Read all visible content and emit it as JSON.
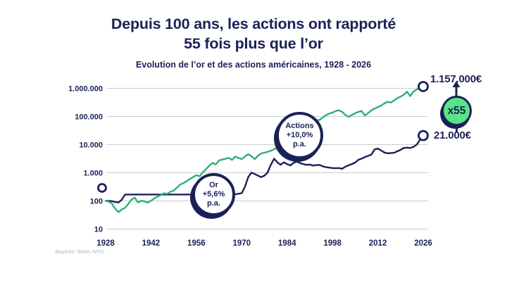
{
  "header": {
    "title_line1": "Depuis 100 ans, les actions ont rapporté",
    "title_line2": "55 fois plus que l’or",
    "subtitle": "Evolution de l’or et des actions américaines, 1928 - 2026"
  },
  "annotations": {
    "actions_badge": {
      "line1": "Actions",
      "line2": "+10,0%",
      "line3": "p.a."
    },
    "or_badge": {
      "line1": "Or",
      "line2": "+5,6%",
      "line3": "p.a."
    },
    "multiplier_badge": "x55",
    "stocks_end_label": "1.157.000€",
    "gold_end_label": "21.000€"
  },
  "footer": {
    "sources": "Sources: Stern, NYU"
  },
  "colors": {
    "navy": "#1b2157",
    "green_line": "#2faf7b",
    "badge_green": "#58e588",
    "gridline": "#cbcbcf",
    "source_text": "#a6aac6",
    "background": "#ffffff"
  },
  "chart_data": {
    "type": "line",
    "y_scale": "log",
    "x_range": [
      1928,
      2026
    ],
    "ylim": [
      10,
      1000000
    ],
    "grid": "horizontal-only",
    "x_ticks": [
      1928,
      1942,
      1956,
      1970,
      1984,
      1998,
      2012,
      2026
    ],
    "y_ticks": [
      {
        "value": 1000000,
        "label": "1.000.000"
      },
      {
        "value": 100000,
        "label": "100.000"
      },
      {
        "value": 10000,
        "label": "10.000"
      },
      {
        "value": 1000,
        "label": "1.000"
      },
      {
        "value": 100,
        "label": "100"
      },
      {
        "value": 10,
        "label": "10"
      }
    ],
    "series": [
      {
        "name": "Actions",
        "color": "#2faf7b",
        "end_value_label": "1.157.000€",
        "annual_return": "+10,0% p.a.",
        "points": [
          [
            1928,
            100
          ],
          [
            1929,
            94
          ],
          [
            1930,
            79
          ],
          [
            1931,
            52
          ],
          [
            1932,
            40
          ],
          [
            1933,
            50
          ],
          [
            1934,
            57
          ],
          [
            1935,
            78
          ],
          [
            1936,
            112
          ],
          [
            1937,
            130
          ],
          [
            1938,
            87
          ],
          [
            1939,
            102
          ],
          [
            1940,
            96
          ],
          [
            1941,
            87
          ],
          [
            1942,
            101
          ],
          [
            1943,
            122
          ],
          [
            1944,
            141
          ],
          [
            1945,
            160
          ],
          [
            1946,
            186
          ],
          [
            1947,
            178
          ],
          [
            1948,
            210
          ],
          [
            1949,
            230
          ],
          [
            1950,
            295
          ],
          [
            1951,
            380
          ],
          [
            1952,
            430
          ],
          [
            1953,
            500
          ],
          [
            1954,
            600
          ],
          [
            1955,
            700
          ],
          [
            1956,
            820
          ],
          [
            1957,
            750
          ],
          [
            1958,
            1050
          ],
          [
            1959,
            1350
          ],
          [
            1960,
            1800
          ],
          [
            1961,
            2240
          ],
          [
            1962,
            1980
          ],
          [
            1963,
            2750
          ],
          [
            1964,
            2950
          ],
          [
            1965,
            3150
          ],
          [
            1966,
            3360
          ],
          [
            1967,
            2870
          ],
          [
            1968,
            3730
          ],
          [
            1969,
            3350
          ],
          [
            1970,
            3060
          ],
          [
            1971,
            3800
          ],
          [
            1972,
            4550
          ],
          [
            1973,
            3900
          ],
          [
            1974,
            3060
          ],
          [
            1975,
            4000
          ],
          [
            1976,
            4830
          ],
          [
            1977,
            5150
          ],
          [
            1978,
            5540
          ],
          [
            1979,
            6100
          ],
          [
            1980,
            6800
          ],
          [
            1981,
            7800
          ],
          [
            1982,
            6800
          ],
          [
            1983,
            10200
          ],
          [
            1984,
            10900
          ],
          [
            1985,
            11800
          ],
          [
            1986,
            15000
          ],
          [
            1987,
            21000
          ],
          [
            1988,
            28000
          ],
          [
            1989,
            39000
          ],
          [
            1990,
            42000
          ],
          [
            1991,
            56000
          ],
          [
            1992,
            66000
          ],
          [
            1993,
            73000
          ],
          [
            1994,
            75000
          ],
          [
            1995,
            91000
          ],
          [
            1996,
            112000
          ],
          [
            1997,
            126000
          ],
          [
            1998,
            137000
          ],
          [
            1999,
            156000
          ],
          [
            2000,
            166000
          ],
          [
            2001,
            146000
          ],
          [
            2002,
            112000
          ],
          [
            2003,
            97000
          ],
          [
            2004,
            114000
          ],
          [
            2005,
            130000
          ],
          [
            2006,
            146000
          ],
          [
            2007,
            157000
          ],
          [
            2008,
            108000
          ],
          [
            2009,
            132000
          ],
          [
            2010,
            165000
          ],
          [
            2011,
            192000
          ],
          [
            2012,
            216000
          ],
          [
            2013,
            242000
          ],
          [
            2014,
            290000
          ],
          [
            2015,
            332000
          ],
          [
            2016,
            312000
          ],
          [
            2017,
            372000
          ],
          [
            2018,
            450000
          ],
          [
            2019,
            505000
          ],
          [
            2020,
            590000
          ],
          [
            2021,
            760000
          ],
          [
            2022,
            530000
          ],
          [
            2023,
            770000
          ],
          [
            2024,
            905000
          ],
          [
            2025,
            1060000
          ],
          [
            2026,
            1157000
          ]
        ]
      },
      {
        "name": "Or",
        "color": "#1b2157",
        "end_value_label": "21.000€",
        "annual_return": "+5,6% p.a.",
        "points": [
          [
            1928,
            100
          ],
          [
            1929,
            100
          ],
          [
            1930,
            98
          ],
          [
            1931,
            91
          ],
          [
            1932,
            88
          ],
          [
            1933,
            110
          ],
          [
            1934,
            169
          ],
          [
            1936,
            169
          ],
          [
            1940,
            169
          ],
          [
            1944,
            169
          ],
          [
            1948,
            169
          ],
          [
            1952,
            169
          ],
          [
            1956,
            169
          ],
          [
            1960,
            169
          ],
          [
            1964,
            169
          ],
          [
            1967,
            169
          ],
          [
            1968,
            173
          ],
          [
            1969,
            180
          ],
          [
            1970,
            188
          ],
          [
            1971,
            320
          ],
          [
            1972,
            700
          ],
          [
            1973,
            1020
          ],
          [
            1974,
            900
          ],
          [
            1975,
            790
          ],
          [
            1976,
            700
          ],
          [
            1977,
            790
          ],
          [
            1978,
            1030
          ],
          [
            1979,
            1950
          ],
          [
            1980,
            3150
          ],
          [
            1981,
            2350
          ],
          [
            1982,
            1920
          ],
          [
            1983,
            2340
          ],
          [
            1984,
            2030
          ],
          [
            1985,
            1830
          ],
          [
            1986,
            2250
          ],
          [
            1987,
            2500
          ],
          [
            1988,
            2200
          ],
          [
            1989,
            2030
          ],
          [
            1990,
            1900
          ],
          [
            1991,
            1960
          ],
          [
            1992,
            1800
          ],
          [
            1993,
            1870
          ],
          [
            1994,
            1890
          ],
          [
            1995,
            1700
          ],
          [
            1996,
            1580
          ],
          [
            1997,
            1520
          ],
          [
            1998,
            1470
          ],
          [
            1999,
            1450
          ],
          [
            2000,
            1470
          ],
          [
            2001,
            1390
          ],
          [
            2002,
            1650
          ],
          [
            2003,
            1840
          ],
          [
            2004,
            2040
          ],
          [
            2005,
            2300
          ],
          [
            2006,
            2900
          ],
          [
            2007,
            3180
          ],
          [
            2008,
            3620
          ],
          [
            2009,
            4000
          ],
          [
            2010,
            4400
          ],
          [
            2011,
            6800
          ],
          [
            2012,
            7200
          ],
          [
            2013,
            6150
          ],
          [
            2014,
            5250
          ],
          [
            2015,
            4900
          ],
          [
            2016,
            5050
          ],
          [
            2017,
            5100
          ],
          [
            2018,
            5800
          ],
          [
            2019,
            6500
          ],
          [
            2020,
            7600
          ],
          [
            2021,
            7800
          ],
          [
            2022,
            7600
          ],
          [
            2023,
            8300
          ],
          [
            2024,
            10000
          ],
          [
            2025,
            14700
          ],
          [
            2026,
            21000
          ]
        ]
      }
    ],
    "markers": [
      {
        "name": "start-marker",
        "year": 1926.9,
        "value": 290,
        "r": 5.5
      },
      {
        "name": "actions-end-marker",
        "year": 2026,
        "value": 1157000,
        "r": 6.5
      },
      {
        "name": "or-end-marker",
        "year": 2026,
        "value": 21000,
        "r": 6.5
      }
    ]
  }
}
